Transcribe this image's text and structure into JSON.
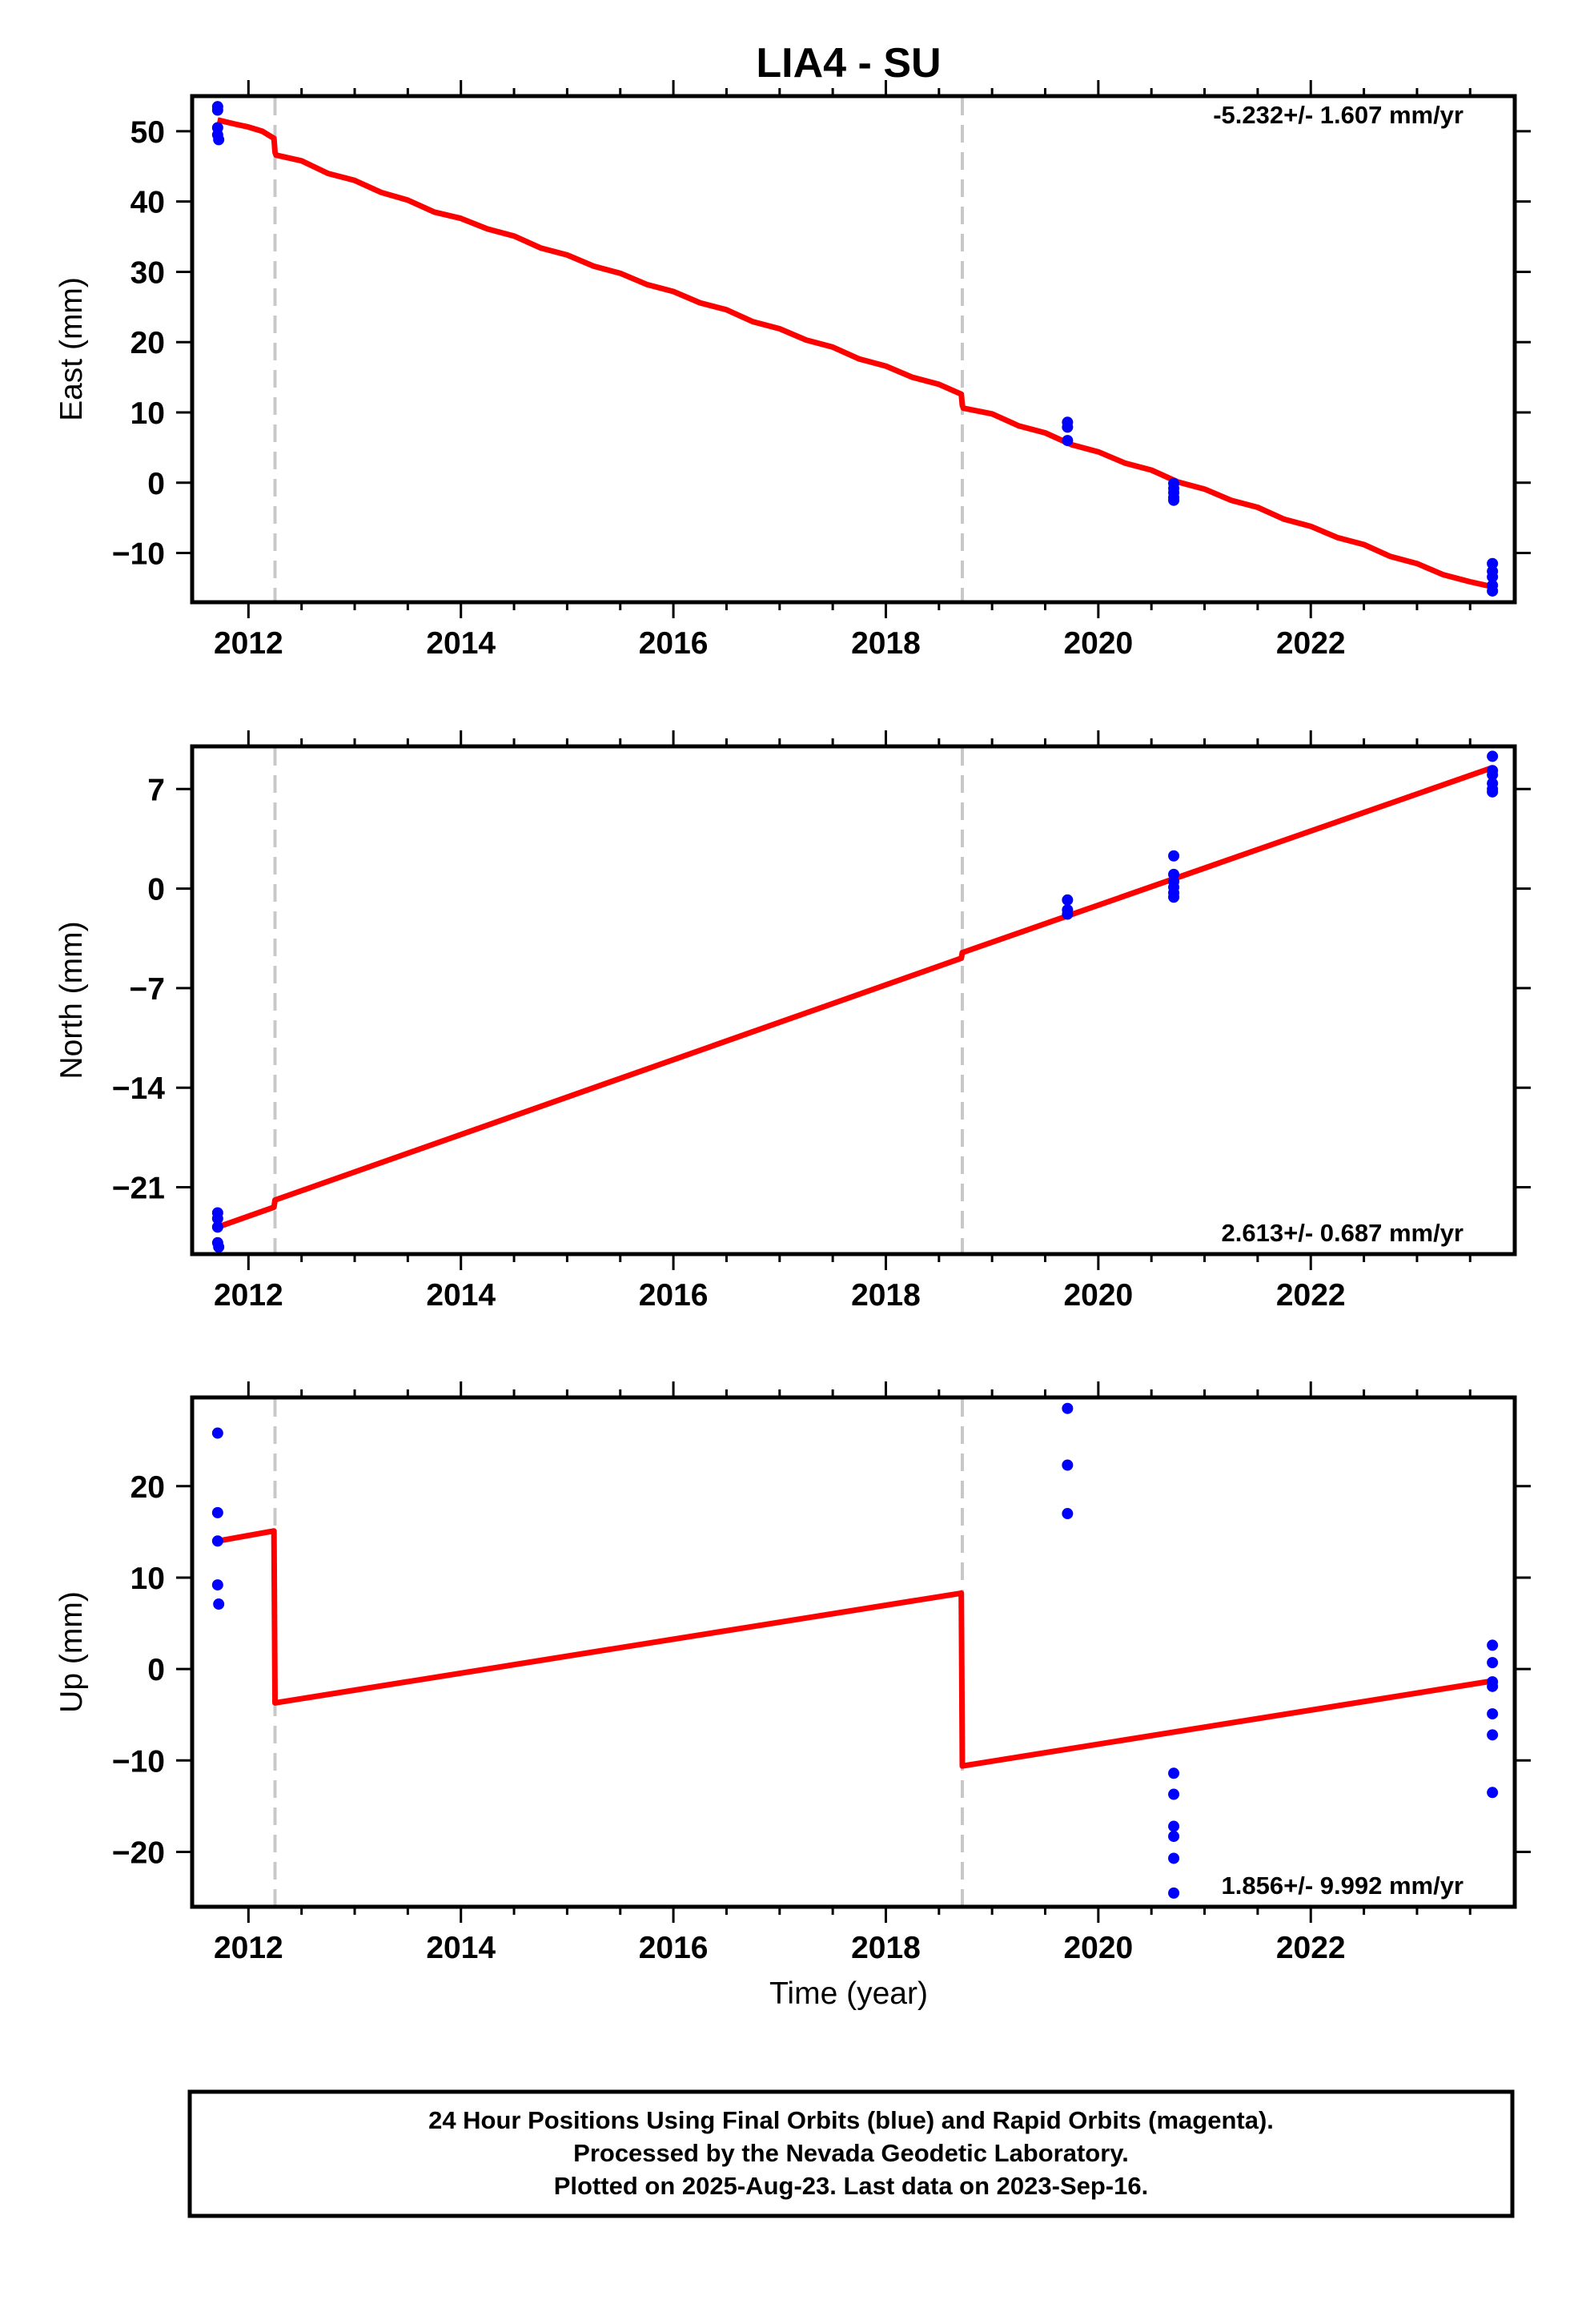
{
  "figure": {
    "title": "LIA4 - SU",
    "xlabel": "Time (year)",
    "footer": [
      "24 Hour Positions Using Final Orbits (blue) and Rapid Orbits (magenta).",
      "Processed by the Nevada Geodetic Laboratory.",
      "Plotted on 2025-Aug-23. Last data on 2023-Sep-16."
    ],
    "colors": {
      "final_orbits": "#0000ff",
      "model": "#ff0000",
      "breaks": "#c8c8c8",
      "axis": "#000000"
    }
  },
  "chart_data": [
    {
      "type": "scatter",
      "ylabel": "East (mm)",
      "rate_label": "-5.232+/- 1.607 mm/yr",
      "xlim": [
        2011.47,
        2023.92
      ],
      "ylim": [
        -17,
        55
      ],
      "yticks": [
        -10,
        0,
        10,
        20,
        30,
        40,
        50
      ],
      "xticks": [
        2012,
        2014,
        2016,
        2018,
        2020,
        2022
      ],
      "breaks": [
        2012.25,
        2018.72
      ],
      "series": [
        {
          "role": "observations",
          "x": [
            2011.71,
            2011.71,
            2011.71,
            2011.71,
            2011.72,
            2019.71,
            2019.71,
            2019.71,
            2020.71,
            2020.71,
            2020.71,
            2020.71,
            2020.71,
            2023.71,
            2023.71,
            2023.71,
            2023.71,
            2023.71
          ],
          "y": [
            53.5,
            53.0,
            50.5,
            49.5,
            48.8,
            8.6,
            7.9,
            6.0,
            -0.1,
            -0.8,
            -1.4,
            -2.1,
            -2.5,
            -11.5,
            -12.6,
            -13.4,
            -14.6,
            -15.4
          ]
        },
        {
          "role": "model",
          "x": [
            2011.71,
            2011.88,
            2012.0,
            2012.13,
            2012.24,
            2012.25,
            2012.26,
            2012.5,
            2012.75,
            2013.0,
            2013.25,
            2013.5,
            2013.75,
            2014.0,
            2014.25,
            2014.5,
            2014.75,
            2015.0,
            2015.25,
            2015.5,
            2015.75,
            2016.0,
            2016.25,
            2016.5,
            2016.75,
            2017.0,
            2017.25,
            2017.5,
            2017.75,
            2018.0,
            2018.25,
            2018.5,
            2018.71,
            2018.72,
            2018.73,
            2019.0,
            2019.25,
            2019.5,
            2019.75,
            2020.0,
            2020.25,
            2020.5,
            2020.75,
            2021.0,
            2021.25,
            2021.5,
            2021.75,
            2022.0,
            2022.25,
            2022.5,
            2022.75,
            2023.0,
            2023.25,
            2023.5,
            2023.71
          ],
          "y": [
            51.6,
            51.0,
            50.6,
            50.0,
            49.0,
            47.0,
            46.6,
            45.8,
            44.0,
            43.0,
            41.3,
            40.2,
            38.5,
            37.6,
            36.1,
            35.1,
            33.4,
            32.4,
            30.8,
            29.8,
            28.2,
            27.2,
            25.6,
            24.6,
            22.9,
            21.9,
            20.3,
            19.3,
            17.6,
            16.6,
            15.0,
            14.0,
            12.6,
            11.0,
            10.6,
            9.8,
            8.1,
            7.1,
            5.4,
            4.4,
            2.8,
            1.8,
            0.1,
            -0.9,
            -2.5,
            -3.5,
            -5.2,
            -6.2,
            -7.8,
            -8.8,
            -10.5,
            -11.5,
            -13.1,
            -14.1,
            -14.8
          ]
        }
      ]
    },
    {
      "type": "scatter",
      "ylabel": "North (mm)",
      "rate_label": "2.613+/- 0.687 mm/yr",
      "xlim": [
        2011.47,
        2023.92
      ],
      "ylim": [
        -25.7,
        10.0
      ],
      "yticks": [
        -21,
        -14,
        -7,
        0,
        7
      ],
      "xticks": [
        2012,
        2014,
        2016,
        2018,
        2020,
        2022
      ],
      "breaks": [
        2012.25,
        2018.72
      ],
      "series": [
        {
          "role": "observations",
          "x": [
            2011.71,
            2011.71,
            2011.71,
            2011.71,
            2011.72,
            2019.71,
            2019.71,
            2019.71,
            2020.71,
            2020.71,
            2020.71,
            2020.71,
            2020.71,
            2020.71,
            2023.71,
            2023.71,
            2023.71,
            2023.71,
            2023.71,
            2023.71
          ],
          "y": [
            -22.8,
            -23.2,
            -23.8,
            -24.9,
            -25.2,
            -0.8,
            -1.5,
            -1.8,
            2.3,
            1.0,
            0.5,
            0.1,
            -0.3,
            -0.6,
            9.3,
            8.3,
            8.0,
            7.4,
            7.0,
            6.8
          ],
          "color": "#0000ff"
        },
        {
          "role": "model",
          "x": [
            2011.71,
            2012.24,
            2012.25,
            2018.71,
            2018.72,
            2023.71
          ],
          "y": [
            -23.8,
            -22.4,
            -21.9,
            -4.9,
            -4.5,
            8.5
          ]
        }
      ]
    },
    {
      "type": "scatter",
      "ylabel": "Up (mm)",
      "rate_label": "1.856+/- 9.992 mm/yr",
      "xlim": [
        2011.47,
        2023.92
      ],
      "ylim": [
        -26.0,
        29.7
      ],
      "yticks": [
        -20,
        -10,
        0,
        10,
        20
      ],
      "xticks": [
        2012,
        2014,
        2016,
        2018,
        2020,
        2022
      ],
      "breaks": [
        2012.25,
        2018.72
      ],
      "series": [
        {
          "role": "observations",
          "x": [
            2011.71,
            2011.71,
            2011.71,
            2011.71,
            2011.72,
            2019.71,
            2019.71,
            2019.71,
            2020.71,
            2020.71,
            2020.71,
            2020.71,
            2020.71,
            2020.71,
            2023.71,
            2023.71,
            2023.71,
            2023.71,
            2023.71,
            2023.71,
            2023.71
          ],
          "y": [
            25.8,
            17.1,
            14.0,
            9.2,
            7.1,
            28.5,
            22.3,
            17.0,
            -11.4,
            -13.7,
            -17.2,
            -18.3,
            -20.7,
            -24.5,
            2.6,
            0.7,
            -1.4,
            -4.9,
            -7.2,
            -13.5,
            -1.9
          ]
        },
        {
          "role": "model",
          "x": [
            2011.71,
            2012.24,
            2012.25,
            2018.71,
            2018.72,
            2023.71
          ],
          "y": [
            14.0,
            15.1,
            -3.7,
            8.3,
            -10.6,
            -1.3
          ]
        }
      ]
    }
  ]
}
